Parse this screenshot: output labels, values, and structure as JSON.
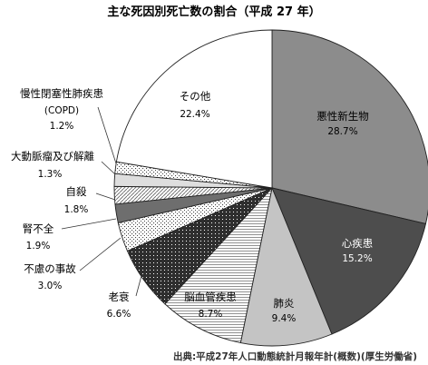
{
  "chart_data": {
    "type": "pie",
    "title": "主な死因別死亡数の割合（平成 27 年）",
    "source": "出典:平成27年人口動態統計月報年計(概数)(厚生労働省)",
    "slices": [
      {
        "name": "悪性新生物",
        "value": 28.7,
        "label": "28.7%",
        "fill": "#8c8c8c",
        "pattern": "solid"
      },
      {
        "name": "心疾患",
        "value": 15.2,
        "label": "15.2%",
        "fill": "#4d4d4d",
        "pattern": "solid"
      },
      {
        "name": "肺炎",
        "value": 9.4,
        "label": "9.4%",
        "fill": "#c4c4c4",
        "pattern": "solid"
      },
      {
        "name": "脳血管疾患",
        "value": 8.7,
        "label": "8.7%",
        "fill": "#ffffff",
        "pattern": "hlines"
      },
      {
        "name": "老衰",
        "value": 6.6,
        "label": "6.6%",
        "fill": "#333333",
        "pattern": "dots-light"
      },
      {
        "name": "不慮の事故",
        "value": 3.0,
        "label": "3.0%",
        "fill": "#ffffff",
        "pattern": "dots"
      },
      {
        "name": "腎不全",
        "value": 1.9,
        "label": "1.9%",
        "fill": "#6e6e6e",
        "pattern": "solid"
      },
      {
        "name": "自殺",
        "value": 1.8,
        "label": "1.8%",
        "fill": "#ffffff",
        "pattern": "diag"
      },
      {
        "name": "大動脈瘤及び解離",
        "value": 1.3,
        "label": "1.3%",
        "fill": "#dedede",
        "pattern": "solid"
      },
      {
        "name": "慢性閉塞性肺疾患",
        "name2": "(COPD)",
        "value": 1.2,
        "label": "1.2%",
        "fill": "#ffffff",
        "pattern": "dots"
      },
      {
        "name": "その他",
        "value": 22.4,
        "label": "22.4%",
        "fill": "#ffffff",
        "pattern": "solid"
      }
    ],
    "legend": "none"
  }
}
